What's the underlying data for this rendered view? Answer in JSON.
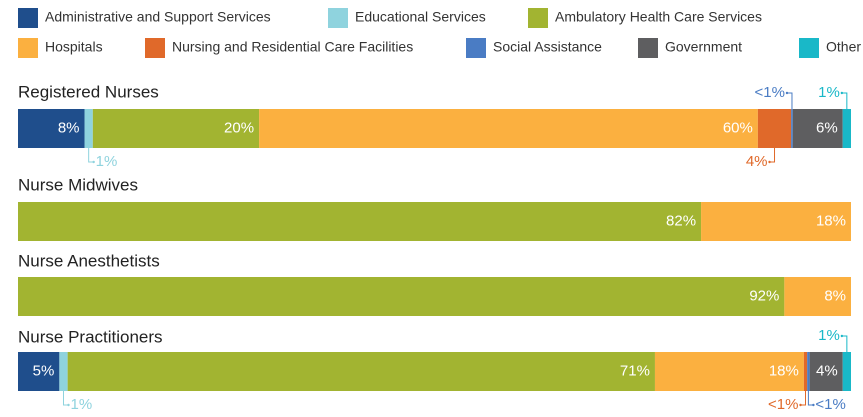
{
  "chart_data": {
    "type": "stacked-bar-horizontal",
    "categories": [
      "Registered Nurses",
      "Nurse Midwives",
      "Nurse Anesthetists",
      "Nurse Practitioners"
    ],
    "series": [
      {
        "name": "Administrative and Support Services",
        "color": "#1f4e8c",
        "values": [
          8,
          null,
          null,
          5
        ],
        "value_labels": [
          "8%",
          null,
          null,
          "5%"
        ]
      },
      {
        "name": "Educational Services",
        "color": "#8fd3de",
        "values": [
          1,
          null,
          null,
          1
        ],
        "value_labels": [
          "1%",
          null,
          null,
          "1%"
        ]
      },
      {
        "name": "Ambulatory Health Care Services",
        "color": "#a2b431",
        "values": [
          20,
          82,
          92,
          71
        ],
        "value_labels": [
          "20%",
          "82%",
          "92%",
          "71%"
        ]
      },
      {
        "name": "Hospitals",
        "color": "#fbb040",
        "values": [
          60,
          18,
          8,
          18
        ],
        "value_labels": [
          "60%",
          "18%",
          "8%",
          "18%"
        ]
      },
      {
        "name": "Nursing and Residential Care Facilities",
        "color": "#e0692a",
        "values": [
          4,
          null,
          null,
          0.4
        ],
        "value_labels": [
          "4%",
          null,
          null,
          "<1%"
        ]
      },
      {
        "name": "Social Assistance",
        "color": "#4a7cc4",
        "values": [
          0.2,
          null,
          null,
          0.3
        ],
        "value_labels": [
          "<1%",
          null,
          null,
          "<1%"
        ]
      },
      {
        "name": "Government",
        "color": "#5e5e60",
        "values": [
          6,
          null,
          null,
          4
        ],
        "value_labels": [
          "6%",
          null,
          null,
          "4%"
        ]
      },
      {
        "name": "Other",
        "color": "#19b8c8",
        "values": [
          1,
          null,
          null,
          1
        ],
        "value_labels": [
          "1%",
          null,
          null,
          "1%"
        ]
      }
    ]
  }
}
